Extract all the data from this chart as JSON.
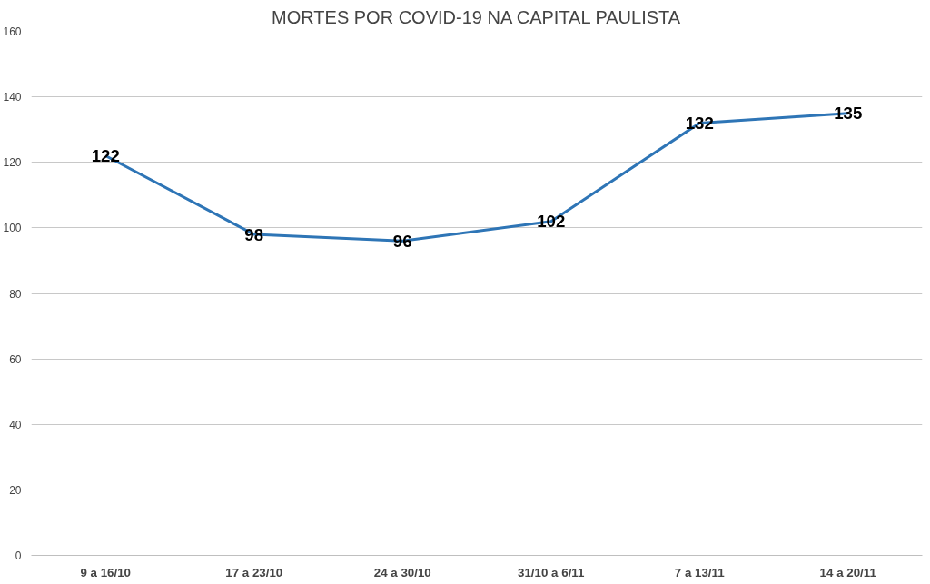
{
  "chart_data": {
    "type": "line",
    "title": "MORTES POR COVID-19 NA CAPITAL PAULISTA",
    "categories": [
      "9 a 16/10",
      "17 a 23/10",
      "24 a 30/10",
      "31/10 a 6/11",
      "7 a 13/11",
      "14 a 20/11"
    ],
    "series": [
      {
        "color": "#2e75b6",
        "values": [
          122,
          98,
          96,
          102,
          132,
          135
        ]
      }
    ],
    "ylim": [
      0,
      160
    ],
    "yticks": [
      0,
      20,
      40,
      60,
      80,
      100,
      120,
      140,
      160
    ],
    "grid": "y",
    "data_labels": true,
    "marker": "none",
    "line_style": "solid"
  }
}
